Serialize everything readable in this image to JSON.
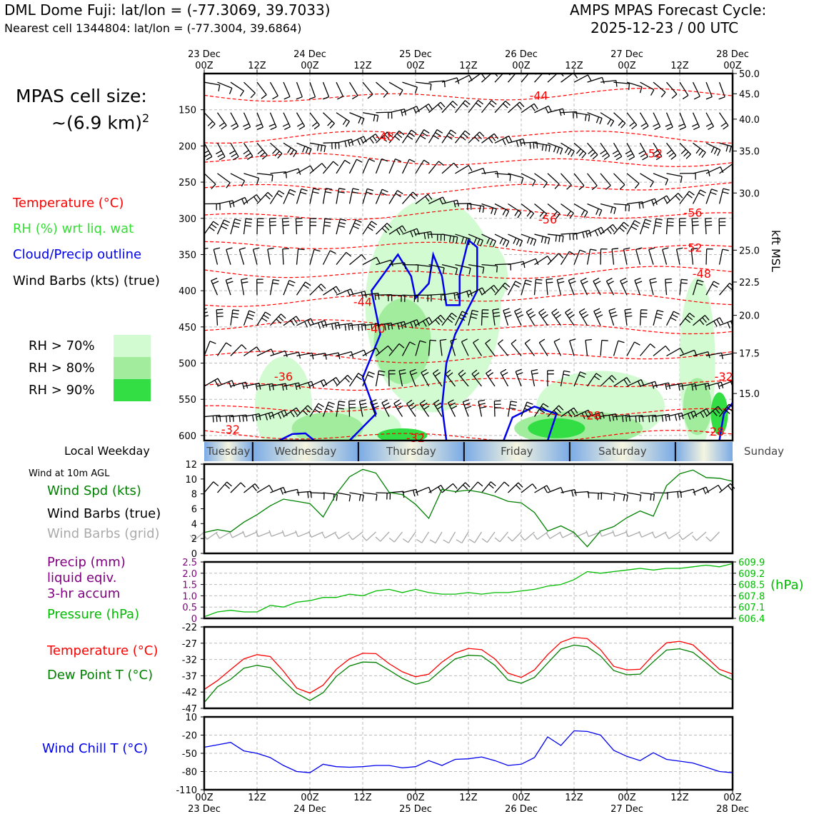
{
  "header": {
    "title": "DML Dome Fuji: lat/lon = (-77.3069, 39.7033)",
    "subtitle": "Nearest cell 1344804: lat/lon = (-77.3004, 39.6864)",
    "cycle_label": "AMPS MPAS Forecast Cycle:",
    "cycle_value": "2025-12-23 / 00 UTC"
  },
  "cell_size": {
    "label": "MPAS cell size:",
    "value": "~(6.9 km)",
    "exponent": "2"
  },
  "legend": {
    "temperature": "Temperature (°C)",
    "rh": "RH (%) wrt liq. wat",
    "cloud": "Cloud/Precip outline",
    "wind": "Wind Barbs (kts) (true)",
    "rh70": "RH > 70%",
    "rh80": "RH > 80%",
    "rh90": "RH > 90%"
  },
  "colors": {
    "temp": "#ff0000",
    "rh_text": "#33dd33",
    "cloud": "#0000ee",
    "rh70": "#d2fbd2",
    "rh80": "#a2ec9e",
    "rh90": "#33dd44",
    "wind_spd": "#008000",
    "precip": "#800080",
    "pressure": "#00bb00",
    "dew": "#008000",
    "chill": "#0000ee",
    "grid_barb": "#aaaaaa"
  },
  "weekday": {
    "label": "Local Weekday",
    "days": [
      "Tuesday",
      "Wednesday",
      "Thursday",
      "Friday",
      "Saturday",
      "Sunday"
    ]
  },
  "surface": {
    "caption": "Wind at 10m AGL",
    "wind_spd": "Wind Spd (kts)",
    "barbs_true": "Wind Barbs (true)",
    "barbs_grid": "Wind Barbs (grid)",
    "precip1": "Precip (mm)",
    "precip2": "liquid eqiv.",
    "precip3": "3-hr accum",
    "pressure": "Pressure (hPa)",
    "pressure_unit": "(hPa)",
    "temp": "Temperature (°C)",
    "dew": "Dew Point T (°C)",
    "chill": "Wind Chill T (°C)"
  },
  "axis_right_label": "kft MSL",
  "chart_data": [
    {
      "type": "heatmap",
      "name": "vertical-cross-section",
      "x_tick_labels_top": [
        [
          "23 Dec",
          "00Z"
        ],
        [
          "",
          "12Z"
        ],
        [
          "24 Dec",
          "00Z"
        ],
        [
          "",
          "12Z"
        ],
        [
          "25 Dec",
          "00Z"
        ],
        [
          "",
          "12Z"
        ],
        [
          "26 Dec",
          "00Z"
        ],
        [
          "",
          "12Z"
        ],
        [
          "27 Dec",
          "00Z"
        ],
        [
          "",
          "12Z"
        ],
        [
          "28 Dec",
          "00Z"
        ]
      ],
      "x_hours": [
        0,
        120
      ],
      "ylim_hpa": [
        100,
        607
      ],
      "y_ticks_hpa": [
        "150",
        "200",
        "250",
        "300",
        "350",
        "400",
        "450",
        "500",
        "550",
        "600"
      ],
      "y_right_kft": [
        {
          "label": "50.0",
          "hpa": 100
        },
        {
          "label": "45.0",
          "hpa": 128
        },
        {
          "label": "40.0",
          "hpa": 163
        },
        {
          "label": "35.0",
          "hpa": 207
        },
        {
          "label": "30.0",
          "hpa": 265
        },
        {
          "label": "25.0",
          "hpa": 344
        },
        {
          "label": "22.5",
          "hpa": 388
        },
        {
          "label": "20.0",
          "hpa": 434
        },
        {
          "label": "17.5",
          "hpa": 486
        },
        {
          "label": "15.0",
          "hpa": 542
        }
      ],
      "temp_contours": [
        {
          "label": "-44",
          "hour": 76,
          "hpa": 130
        },
        {
          "label": "-48",
          "hour": 41,
          "hpa": 187
        },
        {
          "label": "-52",
          "hour": 102,
          "hpa": 210
        },
        {
          "label": "-56",
          "hour": 78,
          "hpa": 301
        },
        {
          "label": "-56",
          "hour": 111,
          "hpa": 292
        },
        {
          "label": "-52",
          "hour": 111,
          "hpa": 340
        },
        {
          "label": "-48",
          "hour": 113,
          "hpa": 376
        },
        {
          "label": "-44",
          "hour": 36,
          "hpa": 415
        },
        {
          "label": "-40",
          "hour": 39,
          "hpa": 452
        },
        {
          "label": "-36",
          "hour": 18,
          "hpa": 518
        },
        {
          "label": "-32",
          "hour": 118,
          "hpa": 518
        },
        {
          "label": "-28",
          "hour": 88,
          "hpa": 572
        },
        {
          "label": "-32",
          "hour": 6,
          "hpa": 591
        },
        {
          "label": "-32",
          "hour": 48,
          "hpa": 603
        },
        {
          "label": "-28",
          "hour": 116,
          "hpa": 594
        }
      ]
    },
    {
      "type": "line",
      "name": "wind-speed",
      "ylabel": "Wind Spd (kts)",
      "ylim": [
        0,
        12
      ],
      "y_ticks": [
        "0",
        "2",
        "4",
        "6",
        "8",
        "10",
        "12"
      ],
      "x_hours": [
        0,
        3,
        6,
        9,
        12,
        15,
        18,
        21,
        24,
        27,
        30,
        33,
        36,
        39,
        42,
        45,
        48,
        51,
        54,
        57,
        60,
        63,
        66,
        69,
        72,
        75,
        78,
        81,
        84,
        87,
        90,
        93,
        96,
        99,
        102,
        105,
        108,
        111,
        114,
        117,
        120
      ],
      "values": [
        2.8,
        3.2,
        2.9,
        4.2,
        5.2,
        6.4,
        7.3,
        7.0,
        6.7,
        4.9,
        8.0,
        10.3,
        11.3,
        10.8,
        8.2,
        7.9,
        6.6,
        4.7,
        8.6,
        8.3,
        8.5,
        8.2,
        7.7,
        7.0,
        6.8,
        5.5,
        3.0,
        3.7,
        2.8,
        0.9,
        3.0,
        3.6,
        4.8,
        5.7,
        5.0,
        9.1,
        10.7,
        11.2,
        10.2,
        10.1,
        9.7
      ]
    },
    {
      "type": "line",
      "name": "pressure",
      "ylabel": "Pressure (hPa)",
      "ylim": [
        606.4,
        609.9
      ],
      "y_ticks_right": [
        "606.4",
        "607.1",
        "607.8",
        "608.5",
        "609.2",
        "609.9"
      ],
      "y_ticks_left_precip": [
        "0",
        "0.5",
        "1.0",
        "1.5",
        "2.0",
        "2.5"
      ],
      "x_hours": [
        0,
        3,
        6,
        9,
        12,
        15,
        18,
        21,
        24,
        27,
        30,
        33,
        36,
        39,
        42,
        45,
        48,
        51,
        54,
        57,
        60,
        63,
        66,
        69,
        72,
        75,
        78,
        81,
        84,
        87,
        90,
        93,
        96,
        99,
        102,
        105,
        108,
        111,
        114,
        117,
        120
      ],
      "values": [
        606.5,
        606.8,
        606.9,
        606.8,
        606.8,
        607.2,
        607.1,
        607.4,
        607.5,
        607.7,
        607.7,
        607.9,
        607.8,
        608.1,
        608.2,
        608.0,
        608.2,
        608.0,
        607.9,
        607.9,
        608.0,
        607.9,
        608.0,
        608.0,
        608.1,
        608.2,
        608.4,
        608.5,
        608.8,
        609.3,
        609.2,
        609.3,
        609.4,
        609.5,
        609.4,
        609.5,
        609.5,
        609.6,
        609.7,
        609.6,
        609.8
      ]
    },
    {
      "type": "line",
      "name": "temperature-dewpoint",
      "ylim": [
        -47,
        -22
      ],
      "y_ticks": [
        "-22",
        "-27",
        "-32",
        "-37",
        "-42",
        "-47"
      ],
      "x_hours": [
        0,
        3,
        6,
        9,
        12,
        15,
        18,
        21,
        24,
        27,
        30,
        33,
        36,
        39,
        42,
        45,
        48,
        51,
        54,
        57,
        60,
        63,
        66,
        69,
        72,
        75,
        78,
        81,
        84,
        87,
        90,
        93,
        96,
        99,
        102,
        105,
        108,
        111,
        114,
        117,
        120
      ],
      "series": [
        {
          "name": "Temperature (°C)",
          "values": [
            -41.2,
            -38.5,
            -35.1,
            -31.8,
            -30.5,
            -31.1,
            -35.6,
            -40.8,
            -42.3,
            -39.9,
            -35.0,
            -31.8,
            -30.1,
            -30.2,
            -33.3,
            -35.8,
            -37.3,
            -36.5,
            -32.8,
            -30.0,
            -28.6,
            -29.0,
            -31.8,
            -36.2,
            -37.5,
            -35.2,
            -30.5,
            -26.7,
            -25.2,
            -25.6,
            -29.0,
            -34.1,
            -35.2,
            -35.0,
            -30.6,
            -26.9,
            -26.4,
            -27.5,
            -31.2,
            -35.0,
            -36.5
          ]
        },
        {
          "name": "Dew Point T (°C)",
          "values": [
            -45.2,
            -40.4,
            -38.1,
            -34.7,
            -33.8,
            -34.5,
            -38.5,
            -42.4,
            -44.6,
            -42.2,
            -37.2,
            -34.0,
            -32.8,
            -32.9,
            -35.3,
            -37.8,
            -39.6,
            -38.6,
            -35.1,
            -31.8,
            -30.7,
            -30.9,
            -33.8,
            -38.3,
            -39.3,
            -37.5,
            -33.1,
            -28.8,
            -27.6,
            -28.1,
            -30.9,
            -35.4,
            -36.7,
            -36.5,
            -32.7,
            -29.1,
            -28.7,
            -29.8,
            -33.0,
            -36.4,
            -38.3
          ]
        }
      ]
    },
    {
      "type": "line",
      "name": "wind-chill",
      "ylabel": "Wind Chill T (°C)",
      "ylim": [
        -110,
        10
      ],
      "y_ticks": [
        "10",
        "-20",
        "-50",
        "-80",
        "-110"
      ],
      "x_hours": [
        0,
        3,
        6,
        9,
        12,
        15,
        18,
        21,
        24,
        27,
        30,
        33,
        36,
        39,
        42,
        45,
        48,
        51,
        54,
        57,
        60,
        63,
        66,
        69,
        72,
        75,
        78,
        81,
        84,
        87,
        90,
        93,
        96,
        99,
        102,
        105,
        108,
        111,
        114,
        117,
        120
      ],
      "values": [
        -40,
        -36,
        -32,
        -46,
        -50,
        -57,
        -70,
        -80,
        -82,
        -68,
        -72,
        -73,
        -72,
        -70,
        -70,
        -74,
        -72,
        -62,
        -70,
        -60,
        -59,
        -56,
        -62,
        -70,
        -68,
        -57,
        -23,
        -37,
        -13,
        -14,
        -20,
        -45,
        -55,
        -62,
        -49,
        -60,
        -63,
        -66,
        -73,
        -80,
        -82
      ]
    }
  ],
  "bottom_axis": [
    [
      "00Z",
      "23 Dec"
    ],
    [
      "12Z",
      ""
    ],
    [
      "00Z",
      "24 Dec"
    ],
    [
      "12Z",
      ""
    ],
    [
      "00Z",
      "25 Dec"
    ],
    [
      "12Z",
      ""
    ],
    [
      "00Z",
      "26 Dec"
    ],
    [
      "12Z",
      ""
    ],
    [
      "00Z",
      "27 Dec"
    ],
    [
      "12Z",
      ""
    ],
    [
      "00Z",
      "28 Dec"
    ]
  ]
}
